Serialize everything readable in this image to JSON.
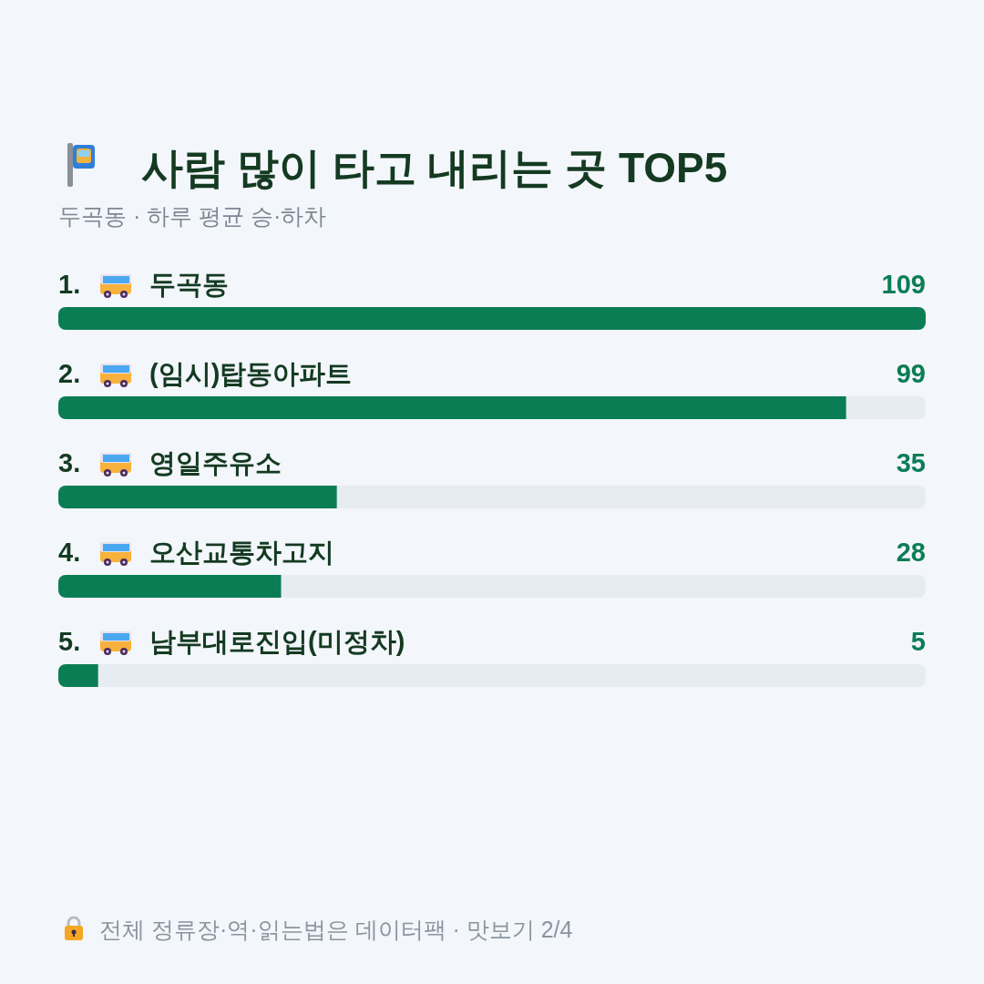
{
  "chart_data": {
    "type": "bar",
    "orientation": "horizontal",
    "title": "사람 많이 타고 내리는 곳 TOP5",
    "subtitle": "두곡동 · 하루 평균 승·하차",
    "categories": [
      "1. 두곡동",
      "2. (임시)탑동아파트",
      "3. 영일주유소",
      "4. 오산교통차고지",
      "5. 남부대로진입(미정차)"
    ],
    "values": [
      109,
      99,
      35,
      28,
      5
    ],
    "color": "#0b7d55",
    "xlim": [
      0,
      109
    ],
    "data_labels": true,
    "tick_labels": false,
    "annotations": [
      "전체 정류장·역·읽는법은 데이터팩 · 맛보기 2/4"
    ]
  }
}
